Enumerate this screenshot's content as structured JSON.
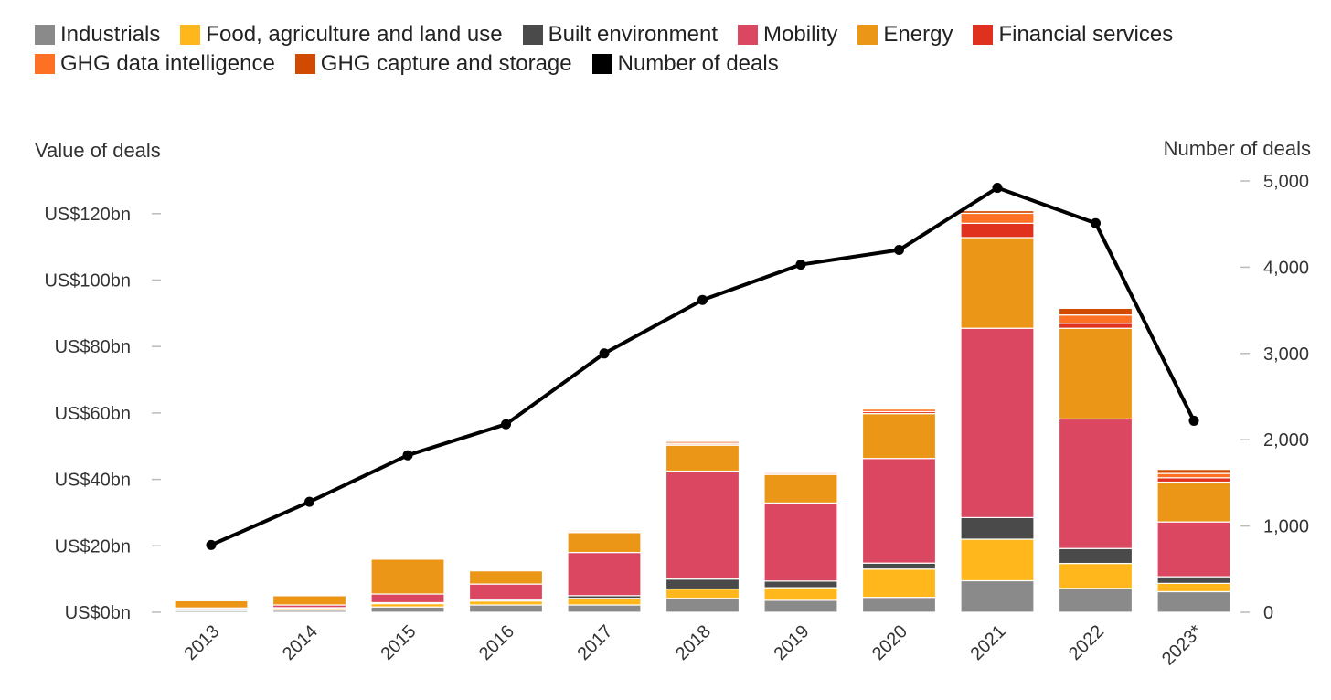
{
  "chart_data": {
    "type": "bar",
    "stacked": true,
    "categories": [
      "2013",
      "2014",
      "2015",
      "2016",
      "2017",
      "2018",
      "2019",
      "2020",
      "2021",
      "2022",
      "2023*"
    ],
    "series": [
      {
        "name": "Industrials",
        "color": "#8a8a8a",
        "values": [
          0.5,
          0.6,
          1.6,
          2.2,
          2.2,
          4.2,
          3.6,
          4.5,
          9.5,
          7.2,
          6.2
        ]
      },
      {
        "name": "Food, agriculture and land use",
        "color": "#ffb71b",
        "values": [
          0.3,
          0.5,
          1.0,
          1.2,
          2.0,
          2.8,
          3.8,
          8.5,
          12.5,
          7.5,
          2.5
        ]
      },
      {
        "name": "Built environment",
        "color": "#4a4a4a",
        "values": [
          0.1,
          0.3,
          0.3,
          0.4,
          0.8,
          3.0,
          2.0,
          1.8,
          6.5,
          4.5,
          2.0
        ]
      },
      {
        "name": "Mobility",
        "color": "#db4660",
        "values": [
          0.4,
          0.8,
          2.6,
          4.7,
          13.0,
          32.5,
          23.5,
          31.5,
          57.0,
          39.0,
          16.5
        ]
      },
      {
        "name": "Energy",
        "color": "#eb9616",
        "values": [
          2.2,
          2.8,
          10.5,
          4.0,
          6.0,
          7.8,
          8.6,
          13.5,
          27.3,
          27.3,
          12.0
        ]
      },
      {
        "name": "Financial services",
        "color": "#e0301e",
        "values": [
          0.1,
          0.2,
          0.2,
          0.2,
          0.3,
          0.4,
          0.4,
          0.6,
          4.3,
          1.5,
          1.3
        ]
      },
      {
        "name": "GHG data intelligence",
        "color": "#fe7125",
        "values": [
          0.1,
          0.2,
          0.2,
          0.2,
          0.4,
          0.5,
          0.4,
          0.8,
          3.0,
          2.5,
          1.3
        ]
      },
      {
        "name": "GHG capture and storage",
        "color": "#d04a02",
        "values": [
          0.05,
          0.1,
          0.1,
          0.1,
          0.3,
          0.4,
          0.3,
          0.4,
          0.8,
          2.0,
          1.2
        ]
      }
    ],
    "line_series": {
      "name": "Number of deals",
      "color": "#000000",
      "axis": "right",
      "values": [
        780,
        1280,
        1820,
        2180,
        3000,
        3620,
        4030,
        4200,
        4920,
        4510,
        2220
      ]
    },
    "ylabel_left": "Value of deals",
    "ylabel_right": "Number of deals",
    "ylim_left": [
      0,
      128.2
    ],
    "ylim_right": [
      0,
      5000
    ],
    "yticks_left": [
      {
        "value": 0,
        "label": "US$0bn"
      },
      {
        "value": 20,
        "label": "US$20bn"
      },
      {
        "value": 40,
        "label": "US$40bn"
      },
      {
        "value": 60,
        "label": "US$60bn"
      },
      {
        "value": 80,
        "label": "US$80bn"
      },
      {
        "value": 100,
        "label": "US$100bn"
      },
      {
        "value": 120,
        "label": "US$120bn"
      }
    ],
    "yticks_right": [
      {
        "value": 0,
        "label": "0"
      },
      {
        "value": 1000,
        "label": "1,000"
      },
      {
        "value": 2000,
        "label": "2,000"
      },
      {
        "value": 3000,
        "label": "3,000"
      },
      {
        "value": 4000,
        "label": "4,000"
      },
      {
        "value": 5000,
        "label": "5,000"
      }
    ],
    "legend": {
      "placement": "top-left",
      "rows": [
        [
          {
            "label": "Industrials",
            "color": "#8a8a8a"
          },
          {
            "label": "Food, agriculture and land use",
            "color": "#ffb71b"
          },
          {
            "label": "Built environment",
            "color": "#4a4a4a"
          },
          {
            "label": "Mobility",
            "color": "#db4660"
          },
          {
            "label": "Energy",
            "color": "#eb9616"
          },
          {
            "label": "Financial services",
            "color": "#e0301e"
          }
        ],
        [
          {
            "label": "GHG data intelligence",
            "color": "#fe7125"
          },
          {
            "label": "GHG capture and storage",
            "color": "#d04a02"
          },
          {
            "label": "Number of deals",
            "color": "#000000"
          }
        ]
      ]
    },
    "grid": false
  }
}
